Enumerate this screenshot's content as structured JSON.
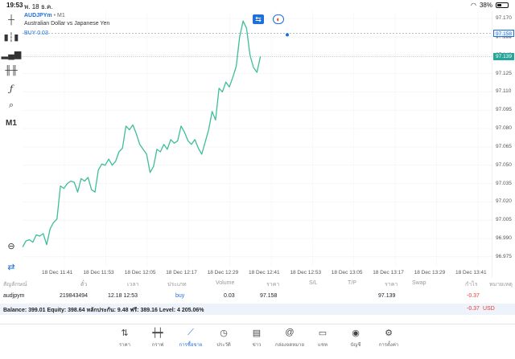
{
  "status_bar": {
    "time": "19:53",
    "date": "พ. 18 ธ.ค.",
    "battery": "38%",
    "battery_level": 0.38
  },
  "chart": {
    "symbol": "AUDJPYm",
    "separator": "•",
    "timeframe": "M1",
    "description": "Australian Dollar vs Japanese Yen",
    "buy_label": "BUY 0.03",
    "timeframe_button": "M1",
    "buy_price_tag": "97.158",
    "ask_price_label": "97.159",
    "last_price_tag": "97.139",
    "line_color": "#3dbd9a"
  },
  "chart_data": {
    "type": "line",
    "symbol": "AUDJPYm",
    "price_ticks": [
      "97.170",
      "97.155",
      "97.140",
      "97.125",
      "97.110",
      "97.095",
      "97.080",
      "97.065",
      "97.050",
      "97.035",
      "97.020",
      "97.005",
      "96.990",
      "96.975"
    ],
    "time_ticks": [
      "18 Dec 11:41",
      "18 Dec 11:53",
      "18 Dec 12:05",
      "18 Dec 12:17",
      "18 Dec 12:29",
      "18 Dec 12:41",
      "18 Dec 12:53",
      "18 Dec 13:05",
      "18 Dec 13:17",
      "18 Dec 13:29",
      "18 Dec 13:41"
    ],
    "ylim": [
      96.967,
      97.176
    ],
    "x_minutes_from_1141": [
      0,
      1,
      2,
      3,
      4,
      5,
      6,
      7,
      8,
      9,
      10,
      11,
      12,
      13,
      14,
      15,
      16,
      17,
      18,
      19,
      20,
      21,
      22,
      23,
      24,
      25,
      26,
      27,
      28,
      29,
      30,
      31,
      32,
      33,
      34,
      35,
      36,
      37,
      38,
      39,
      40,
      41,
      42,
      43,
      44,
      45,
      46,
      47,
      48,
      49,
      50,
      51,
      52,
      53,
      54,
      55,
      56,
      57,
      58,
      59,
      60,
      61,
      62,
      63,
      64,
      65,
      66,
      67,
      68,
      69
    ],
    "values": [
      96.983,
      96.988,
      96.989,
      96.987,
      96.993,
      96.992,
      96.994,
      96.985,
      96.998,
      97.003,
      97.006,
      97.033,
      97.031,
      97.035,
      97.037,
      97.036,
      97.028,
      97.039,
      97.037,
      97.04,
      97.03,
      97.028,
      97.046,
      97.051,
      97.05,
      97.055,
      97.05,
      97.053,
      97.061,
      97.064,
      97.082,
      97.079,
      97.083,
      97.076,
      97.067,
      97.063,
      97.059,
      97.044,
      97.049,
      97.063,
      97.061,
      97.067,
      97.063,
      97.071,
      97.068,
      97.07,
      97.082,
      97.077,
      97.07,
      97.067,
      97.071,
      97.064,
      97.059,
      97.069,
      97.079,
      97.094,
      97.087,
      97.113,
      97.11,
      97.118,
      97.114,
      97.122,
      97.131,
      97.155,
      97.168,
      97.162,
      97.14,
      97.13,
      97.126,
      97.139
    ],
    "buy_price": 97.158,
    "last_price": 97.139,
    "grid": true,
    "legend": "none"
  },
  "positions": {
    "headers": [
      "สัญลักษณ์",
      "ตั๋ว",
      "เวลา",
      "ประเภท",
      "Volume",
      "ราคา",
      "S/L",
      "T/P",
      "ราคา",
      "Swap",
      "กำไร",
      "หมายเหตุ"
    ],
    "rows": [
      {
        "symbol": "audjpym",
        "ticket": "219843494",
        "time": "12.18 12:53",
        "type": "buy",
        "volume": "0.03",
        "open_price": "97.158",
        "sl": "",
        "tp": "",
        "price": "97.139",
        "swap": "",
        "profit": "-0.37",
        "comment": ""
      }
    ],
    "balance_line": "Balance: 399.01  Equity: 398.64  หลักประกัน: 9.48  ฟรี: 389.16  Level: 4 205.06%",
    "total_profit": "-0.37",
    "currency": "USD"
  },
  "nav": [
    {
      "label": "ราคา",
      "icon": "quotes-icon"
    },
    {
      "label": "กราฟ",
      "icon": "chart-icon"
    },
    {
      "label": "การซื้อขาย",
      "icon": "trade-icon"
    },
    {
      "label": "ประวัติ",
      "icon": "history-icon"
    },
    {
      "label": "ข่าว",
      "icon": "news-icon"
    },
    {
      "label": "กล่องจดหมาย",
      "icon": "mailbox-icon"
    },
    {
      "label": "แชท",
      "icon": "chat-icon"
    },
    {
      "label": "บัญชี",
      "icon": "account-icon"
    },
    {
      "label": "การตั้งค่า",
      "icon": "settings-icon"
    }
  ],
  "colors": {
    "accent": "#1e6fd9",
    "line": "#3dbd9a",
    "loss": "#e53935",
    "balance_bg": "#eef3fb"
  }
}
